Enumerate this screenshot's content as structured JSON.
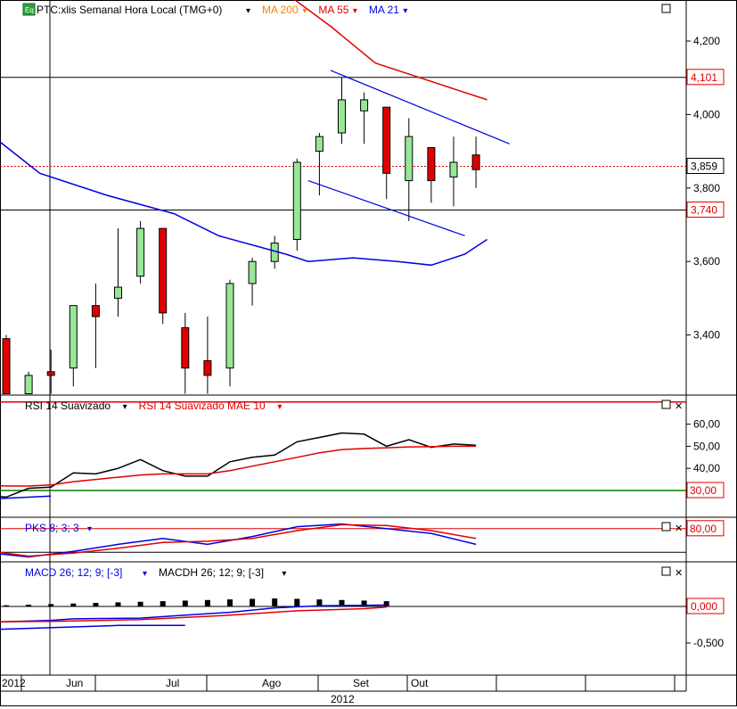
{
  "colors": {
    "background": "#ffffff",
    "border": "#000000",
    "grid": "#c0c0c0",
    "candle_up": "#99e699",
    "candle_down": "#e00000",
    "ma200": "#ff8000",
    "ma55": "#e00000",
    "ma21": "#0000e0",
    "rsi": "#000000",
    "rsi_mae": "#e00000",
    "rsi_level_upper": "#e00000",
    "rsi_level_lower": "#008000",
    "pks_k": "#0000e0",
    "pks_d": "#e00000",
    "macd": "#0000e0",
    "macd_signal": "#e00000",
    "macdh": "#000000",
    "price_marker": "#e00000"
  },
  "main_panel": {
    "icon": "Eq",
    "instrument_label": "PTC:xlis Semanal Hora Local (TMG+0)",
    "dropdown_glyph": "▾",
    "legend": [
      {
        "label": "MA 200",
        "color": "#ff8000"
      },
      {
        "label": "MA 55",
        "color": "#e00000"
      },
      {
        "label": "MA 21",
        "color": "#0000e0"
      }
    ],
    "current_price_label": "3,859",
    "hline_labels": [
      "4,101",
      "3,740"
    ]
  },
  "rsi_panel": {
    "legend": [
      {
        "label": "RSI 14 Suavizado",
        "color": "#000000"
      },
      {
        "label": "RSI 14 Suavizado MAE 10",
        "color": "#e00000"
      }
    ],
    "tick_labels": [
      "60,00",
      "50,00",
      "40,00"
    ],
    "level_label": "30,00"
  },
  "pks_panel": {
    "legend": [
      {
        "label": "PKS 8; 3; 3",
        "color": "#0000e0"
      }
    ],
    "level_label": "80,00"
  },
  "macd_panel": {
    "legend": [
      {
        "label": "MACD 26; 12; 9; [-3]",
        "color": "#0000e0"
      },
      {
        "label": "MACDH 26; 12; 9; [-3]",
        "color": "#000000"
      }
    ],
    "tick_labels": [
      "-0,500"
    ],
    "zero_label": "0,000"
  },
  "x_axis": {
    "month_labels": [
      "2012",
      "Jun",
      "Jul",
      "Ago",
      "Set",
      "Out"
    ],
    "year_label": "2012"
  },
  "chart_data": [
    {
      "type": "candlestick",
      "title": "PTC:xlis Semanal Hora Local (TMG+0)",
      "y_tick_labels": [
        "4,200",
        "4,000",
        "3,800",
        "3,600",
        "3,400"
      ],
      "ylim": [
        3.235,
        4.31
      ],
      "candles": [
        {
          "o": 3.39,
          "h": 3.4,
          "l": 3.24,
          "c": 3.24
        },
        {
          "o": 3.24,
          "h": 3.3,
          "l": 3.24,
          "c": 3.29
        },
        {
          "o": 3.3,
          "h": 3.36,
          "l": 3.24,
          "c": 3.29
        },
        {
          "o": 3.31,
          "h": 3.48,
          "l": 3.26,
          "c": 3.48
        },
        {
          "o": 3.48,
          "h": 3.54,
          "l": 3.31,
          "c": 3.45
        },
        {
          "o": 3.5,
          "h": 3.69,
          "l": 3.45,
          "c": 3.53
        },
        {
          "o": 3.56,
          "h": 3.71,
          "l": 3.54,
          "c": 3.69
        },
        {
          "o": 3.69,
          "h": 3.69,
          "l": 3.43,
          "c": 3.46
        },
        {
          "o": 3.42,
          "h": 3.46,
          "l": 3.24,
          "c": 3.31
        },
        {
          "o": 3.33,
          "h": 3.45,
          "l": 3.24,
          "c": 3.29
        },
        {
          "o": 3.31,
          "h": 3.55,
          "l": 3.26,
          "c": 3.54
        },
        {
          "o": 3.54,
          "h": 3.61,
          "l": 3.48,
          "c": 3.6
        },
        {
          "o": 3.6,
          "h": 3.67,
          "l": 3.58,
          "c": 3.65
        },
        {
          "o": 3.66,
          "h": 3.88,
          "l": 3.63,
          "c": 3.87
        },
        {
          "o": 3.9,
          "h": 3.95,
          "l": 3.78,
          "c": 3.94
        },
        {
          "o": 3.95,
          "h": 4.1,
          "l": 3.92,
          "c": 4.04
        },
        {
          "o": 4.01,
          "h": 4.06,
          "l": 3.92,
          "c": 4.04
        },
        {
          "o": 4.02,
          "h": 4.02,
          "l": 3.77,
          "c": 3.84
        },
        {
          "o": 3.82,
          "h": 3.99,
          "l": 3.71,
          "c": 3.94
        },
        {
          "o": 3.91,
          "h": 3.91,
          "l": 3.76,
          "c": 3.82
        },
        {
          "o": 3.83,
          "h": 3.94,
          "l": 3.75,
          "c": 3.87
        },
        {
          "o": 3.89,
          "h": 3.94,
          "l": 3.8,
          "c": 3.85
        }
      ],
      "series": [
        {
          "name": "MA 200",
          "values": []
        },
        {
          "name": "MA 55",
          "points": [
            [
              12.5,
              4.33
            ],
            [
              14.5,
              4.24
            ],
            [
              16.5,
              4.14
            ],
            [
              18.5,
              4.1
            ],
            [
              20.5,
              4.06
            ],
            [
              21.5,
              4.04
            ]
          ]
        },
        {
          "name": "MA 21",
          "points": [
            [
              -1,
              3.96
            ],
            [
              1.5,
              3.84
            ],
            [
              4.5,
              3.78
            ],
            [
              7.5,
              3.73
            ],
            [
              9.5,
              3.67
            ],
            [
              12.5,
              3.62
            ],
            [
              13.5,
              3.6
            ],
            [
              15.5,
              3.61
            ],
            [
              17.5,
              3.6
            ],
            [
              19,
              3.59
            ],
            [
              20.5,
              3.62
            ],
            [
              21.5,
              3.66
            ]
          ]
        }
      ],
      "trendlines": [
        {
          "from": [
            14.5,
            4.12
          ],
          "to": [
            22.5,
            3.92
          ]
        },
        {
          "from": [
            13.5,
            3.82
          ],
          "to": [
            20.5,
            3.67
          ]
        }
      ],
      "horizontal_lines": [
        4.101,
        3.74
      ],
      "current_price": 3.859
    },
    {
      "type": "line",
      "title": "RSI 14 Suavizado",
      "ylim": [
        22,
        70
      ],
      "y_tick_values": [
        60,
        50,
        40
      ],
      "levels": [
        70,
        30
      ],
      "series": [
        {
          "name": "RSI 14 Suavizado",
          "points": [
            [
              -1,
              28
            ],
            [
              0,
              27
            ],
            [
              1,
              31
            ],
            [
              2,
              31.5
            ],
            [
              3,
              38
            ],
            [
              4,
              37.5
            ],
            [
              5,
              40
            ],
            [
              6,
              44
            ],
            [
              7,
              39
            ],
            [
              8,
              36.5
            ],
            [
              9,
              36.5
            ],
            [
              10,
              43
            ],
            [
              11,
              45
            ],
            [
              12,
              46
            ],
            [
              13,
              52
            ],
            [
              14,
              54
            ],
            [
              15,
              56
            ],
            [
              16,
              55.5
            ],
            [
              17,
              50
            ],
            [
              18,
              53
            ],
            [
              19,
              49.5
            ],
            [
              20,
              51
            ],
            [
              21,
              50.5
            ]
          ]
        },
        {
          "name": "RSI 14 Suavizado MAE 10",
          "points": [
            [
              -1,
              32.5
            ],
            [
              0,
              32
            ],
            [
              1,
              32
            ],
            [
              2,
              32.5
            ],
            [
              3,
              34
            ],
            [
              4,
              35
            ],
            [
              5,
              36
            ],
            [
              6,
              37
            ],
            [
              7,
              37.5
            ],
            [
              8,
              37.5
            ],
            [
              9,
              37.5
            ],
            [
              10,
              39
            ],
            [
              11,
              41
            ],
            [
              12,
              43
            ],
            [
              13,
              45
            ],
            [
              14,
              47
            ],
            [
              15,
              48.5
            ],
            [
              16,
              49
            ],
            [
              17,
              49.3
            ],
            [
              18,
              49.7
            ],
            [
              19,
              49.8
            ],
            [
              20,
              50
            ],
            [
              21,
              50
            ]
          ]
        },
        {
          "name": "",
          "points": [
            [
              -1,
              26
            ],
            [
              2,
              27.5
            ]
          ]
        }
      ]
    },
    {
      "type": "line",
      "title": "PKS 8; 3; 3",
      "ylim": [
        0,
        100
      ],
      "levels": [
        80,
        20
      ],
      "series": [
        {
          "name": "PKS 8; 3; 3",
          "points": [
            [
              -1,
              20
            ],
            [
              1,
              8
            ],
            [
              3,
              22
            ],
            [
              5,
              40
            ],
            [
              7,
              55
            ],
            [
              9,
              40
            ],
            [
              11,
              60
            ],
            [
              13,
              85
            ],
            [
              15,
              92
            ],
            [
              17,
              80
            ],
            [
              19,
              68
            ],
            [
              21,
              40
            ]
          ]
        },
        {
          "name": "",
          "points": [
            [
              -1,
              25
            ],
            [
              1,
              10
            ],
            [
              3,
              18
            ],
            [
              5,
              30
            ],
            [
              7,
              45
            ],
            [
              9,
              48
            ],
            [
              11,
              55
            ],
            [
              13,
              75
            ],
            [
              15,
              90
            ],
            [
              17,
              88
            ],
            [
              19,
              75
            ],
            [
              21,
              55
            ]
          ]
        }
      ]
    },
    {
      "type": "line",
      "title": "MACD 26; 12; 9; [-3]",
      "ylim": [
        -0.72,
        0.45
      ],
      "y_tick_values": [
        -0.5
      ],
      "zero_line": 0,
      "series": [
        {
          "name": "MACD 26; 12; 9; [-3]",
          "points": [
            [
              -1,
              -0.22
            ],
            [
              2,
              -0.19
            ],
            [
              3,
              -0.17
            ],
            [
              6,
              -0.16
            ],
            [
              8,
              -0.12
            ],
            [
              10,
              -0.08
            ],
            [
              12,
              -0.02
            ],
            [
              14,
              0.01
            ],
            [
              16,
              0.015
            ],
            [
              17,
              0.02
            ]
          ]
        },
        {
          "name": "",
          "points": [
            [
              -1,
              -0.21
            ],
            [
              2,
              -0.205
            ],
            [
              6,
              -0.18
            ],
            [
              10,
              -0.12
            ],
            [
              13,
              -0.06
            ],
            [
              16,
              -0.03
            ],
            [
              17,
              -0.01
            ]
          ]
        },
        {
          "name": "",
          "points": [
            [
              -1,
              -0.32
            ],
            [
              5,
              -0.26
            ],
            [
              8,
              -0.26
            ]
          ]
        }
      ],
      "histogram": {
        "name": "MACDH 26; 12; 9; [-3]",
        "points": [
          [
            0,
            0.01
          ],
          [
            1,
            0.015
          ],
          [
            2,
            0.02
          ],
          [
            3,
            0.025
          ],
          [
            4,
            0.03
          ],
          [
            5,
            0.035
          ],
          [
            6,
            0.04
          ],
          [
            7,
            0.045
          ],
          [
            8,
            0.05
          ],
          [
            9,
            0.055
          ],
          [
            10,
            0.06
          ],
          [
            11,
            0.065
          ],
          [
            12,
            0.068
          ],
          [
            13,
            0.065
          ],
          [
            14,
            0.06
          ],
          [
            15,
            0.055
          ],
          [
            16,
            0.05
          ],
          [
            17,
            0.045
          ]
        ]
      }
    }
  ]
}
